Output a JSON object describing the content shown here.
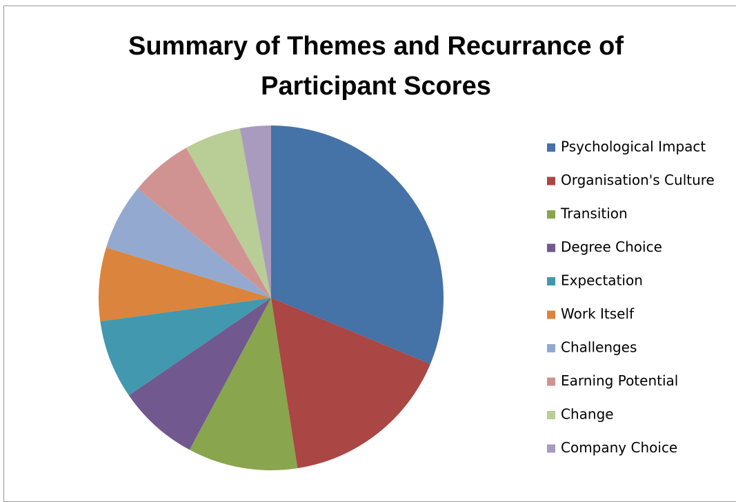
{
  "chart_data": {
    "type": "pie",
    "title": "Summary of Themes and Recurrance of Participant Scores",
    "categories": [
      "Psychological Impact",
      "Organisation's Culture",
      "Transition",
      "Degree Choice",
      "Expectation",
      "Work Itself",
      "Challenges",
      "Earning Potential",
      "Change",
      "Company Choice"
    ],
    "values": [
      31.3,
      16.3,
      10.3,
      7.6,
      7.4,
      6.9,
      6.2,
      5.9,
      5.3,
      2.9
    ],
    "colors": [
      "#4572A7",
      "#AA4643",
      "#89A54E",
      "#71588F",
      "#4198AF",
      "#DB843D",
      "#93A9CF",
      "#D19392",
      "#B9CD96",
      "#A99BBD"
    ],
    "legend": "right"
  }
}
